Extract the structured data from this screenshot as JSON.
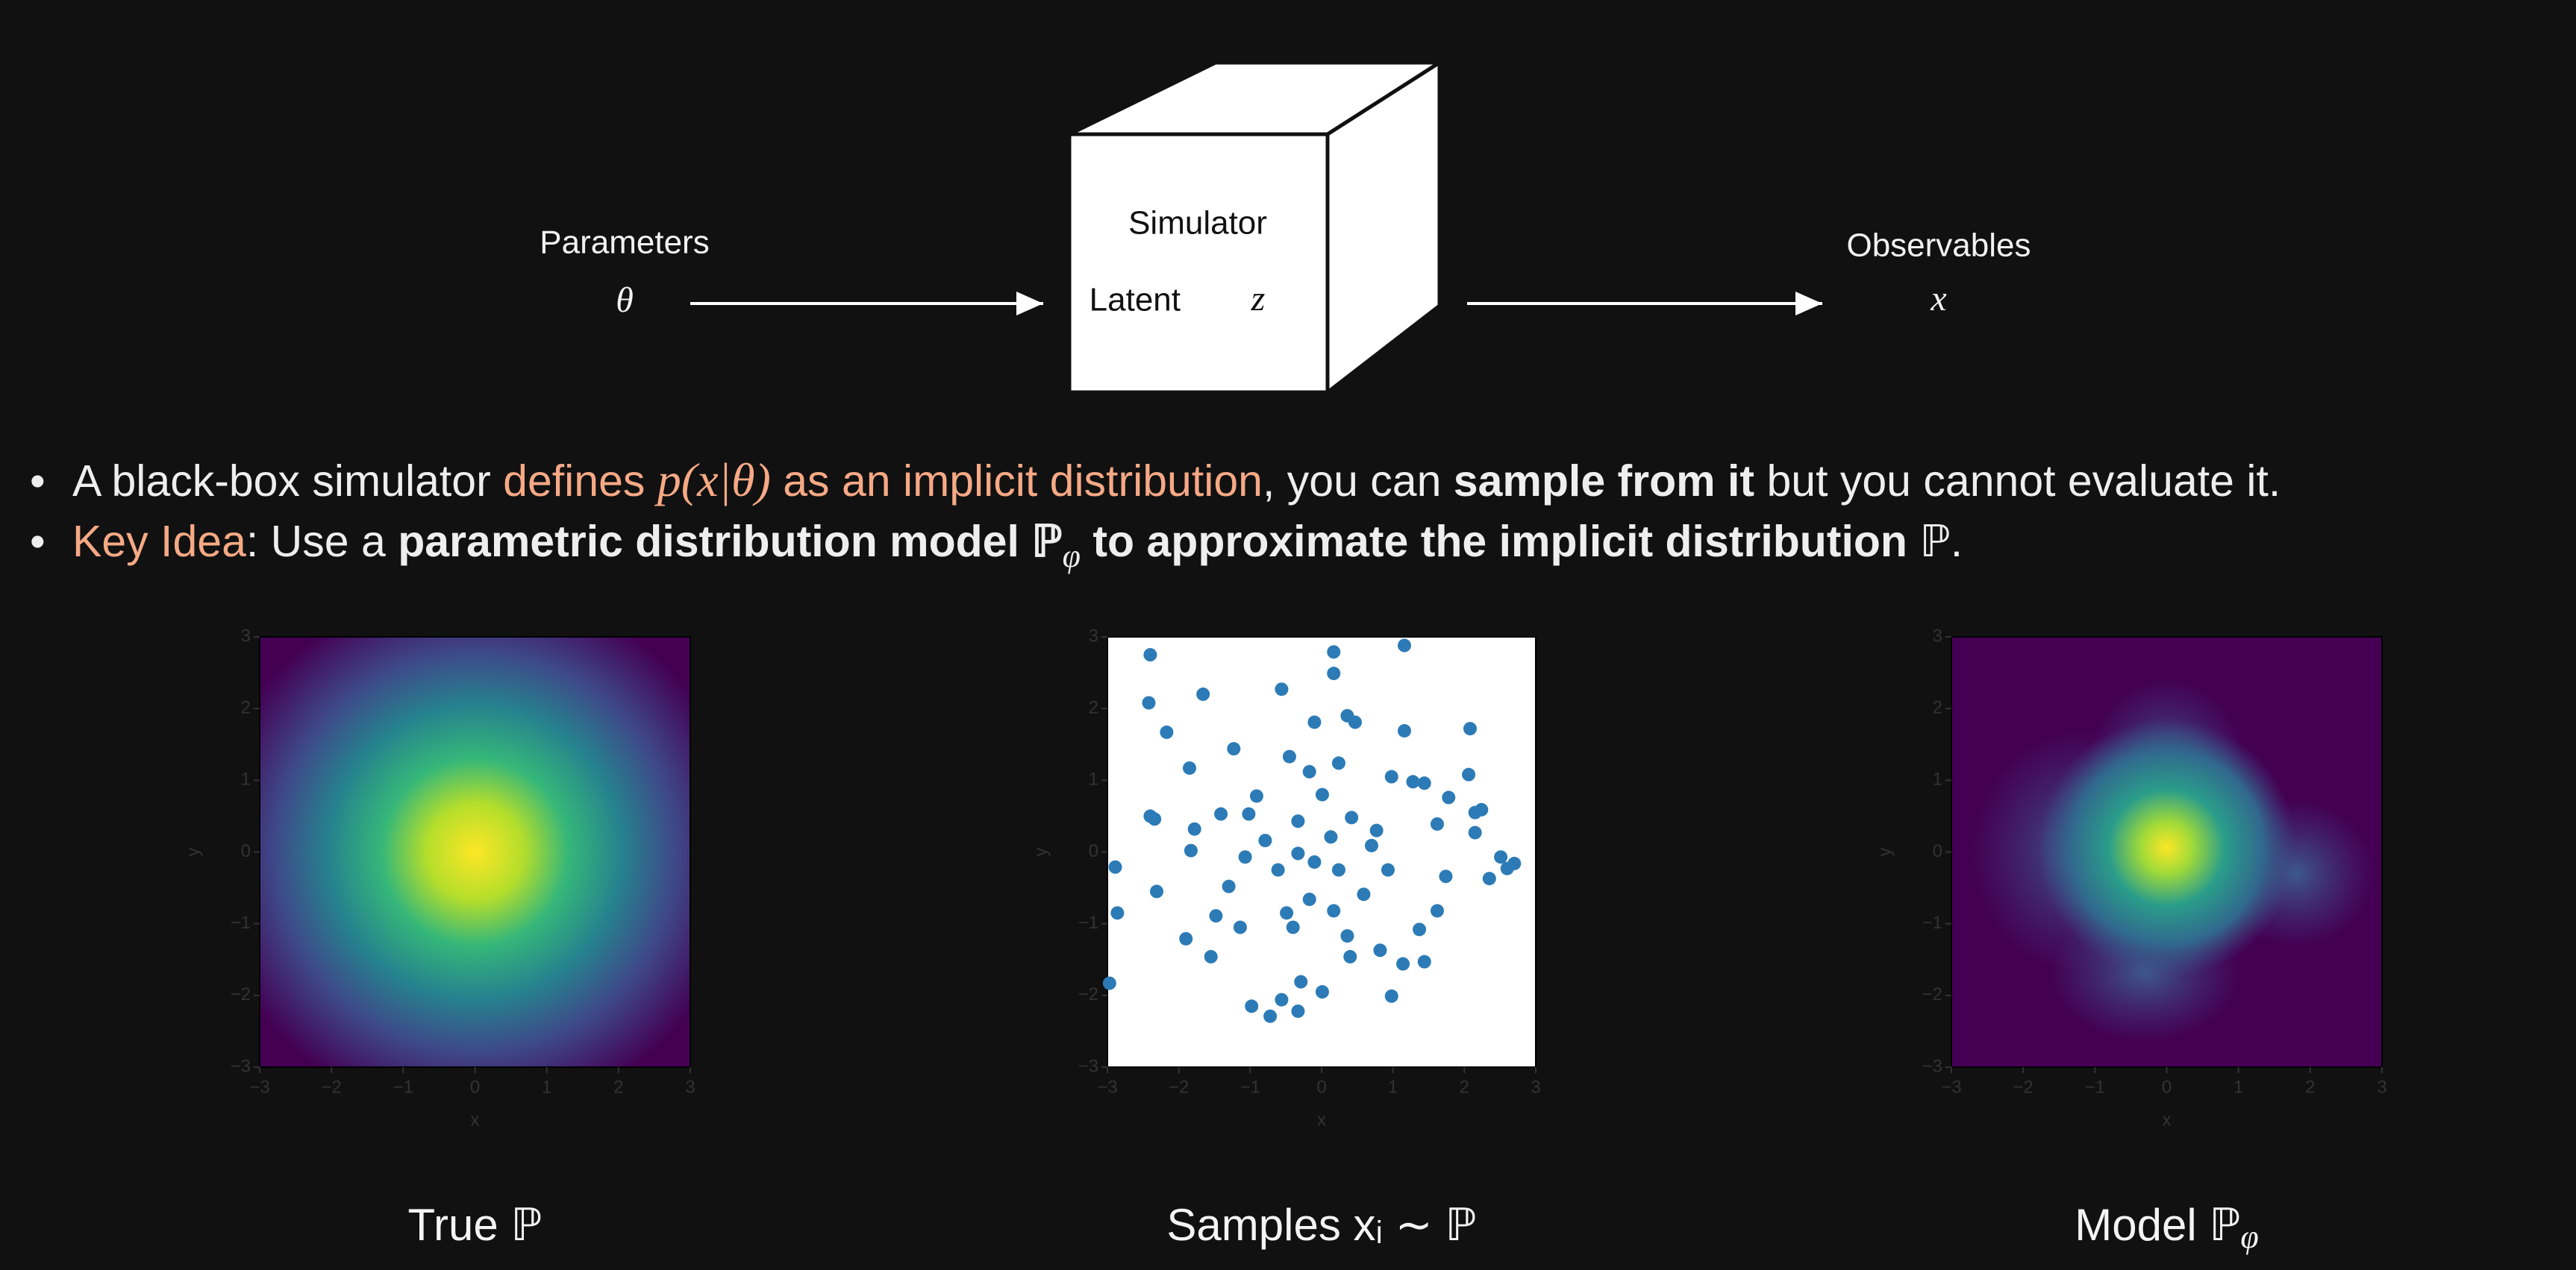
{
  "diagram": {
    "input_label": "Parameters",
    "input_symbol": "θ",
    "box_line1": "Simulator",
    "box_line2": "Latent",
    "latent_symbol": "z",
    "output_label": "Observables",
    "output_symbol": "x"
  },
  "bullets": [
    {
      "segments": [
        {
          "text": "A black-box simulator ",
          "style": "normal"
        },
        {
          "text": "defines ",
          "style": "accent"
        },
        {
          "text": "p(x|θ)",
          "style": "accent-math"
        },
        {
          "text": " as an implicit distribution",
          "style": "accent"
        },
        {
          "text": ", you can ",
          "style": "normal"
        },
        {
          "text": "sample from it",
          "style": "bold"
        },
        {
          "text": " but you cannot evaluate it.",
          "style": "normal"
        }
      ]
    },
    {
      "segments": [
        {
          "text": "Key Idea",
          "style": "accent"
        },
        {
          "text": ": Use a ",
          "style": "normal"
        },
        {
          "text": "parametric distribution model ",
          "style": "bold"
        },
        {
          "text": "ℙ",
          "style": "bold"
        },
        {
          "text": "φ",
          "style": "sub"
        },
        {
          "text": " to approximate the implicit distribution ",
          "style": "bold"
        },
        {
          "text": "ℙ.",
          "style": "normal"
        }
      ]
    }
  ],
  "chart_data": [
    {
      "type": "heatmap",
      "caption": "True ℙ",
      "xlabel": "x",
      "ylabel": "y",
      "xlim": [
        -3,
        3
      ],
      "ylim": [
        -3,
        3
      ],
      "xticks": [
        {
          "value": -3,
          "label": "−3"
        },
        {
          "value": -2,
          "label": "−2"
        },
        {
          "value": -1,
          "label": "−1"
        },
        0,
        1,
        2,
        3
      ],
      "yticks": [
        {
          "value": -3,
          "label": "−3"
        },
        {
          "value": -2,
          "label": "−2"
        },
        {
          "value": -1,
          "label": "−1"
        },
        0,
        1,
        2,
        3
      ]
    },
    {
      "type": "scatter",
      "caption": "Samples xᵢ ∼ ℙ",
      "xlabel": "x",
      "ylabel": "y",
      "xlim": [
        -3,
        3
      ],
      "ylim": [
        -3,
        3
      ],
      "color": "#2c7bb6",
      "xticks": [
        {
          "value": -3,
          "label": "−3"
        },
        {
          "value": -2,
          "label": "−2"
        },
        {
          "value": -1,
          "label": "−1"
        },
        0,
        1,
        2,
        3
      ],
      "yticks": [
        {
          "value": -3,
          "label": "−3"
        },
        {
          "value": -2,
          "label": "−2"
        },
        {
          "value": -1,
          "label": "−1"
        },
        0,
        1,
        2,
        3
      ],
      "x": [
        -2.4,
        -2.42,
        -2.17,
        -1.66,
        -0.56,
        0.17,
        0.17,
        1.16,
        -1.85,
        -1.23,
        -2.89,
        -2.86,
        -2.97,
        -2.31,
        -2.4,
        -2.34,
        -1.9,
        -1.55,
        -0.98,
        -0.72,
        -0.33,
        -0.56,
        0.01,
        -0.29,
        0.98,
        1.14,
        1.44,
        0.82,
        0.4,
        2.08,
        2.06,
        1.78,
        2.15,
        2.24,
        2.15,
        2.35,
        2.51,
        2.6,
        2.7,
        1.16,
        0.98,
        1.28,
        1.44,
        1.62,
        1.74,
        1.62,
        1.37,
        0.36,
        0.47,
        -0.1,
        -0.45,
        -0.91,
        -1.02,
        -0.79,
        -0.33,
        -0.1,
        0.13,
        0.24,
        0.42,
        -0.33,
        -0.61,
        -0.17,
        0.17,
        0.59,
        0.93,
        0.7,
        -1.3,
        -1.48,
        -1.14,
        -1.83,
        -1.78,
        -1.41,
        -0.49,
        -0.4,
        0.36,
        0.01,
        -0.17,
        0.24,
        0.77,
        -1.07
      ],
      "y": [
        2.75,
        2.08,
        1.67,
        2.2,
        2.27,
        2.79,
        2.49,
        2.88,
        1.17,
        1.44,
        -0.21,
        -0.85,
        -1.83,
        -0.55,
        0.5,
        0.46,
        -1.21,
        -1.46,
        -2.15,
        -2.29,
        -2.22,
        -2.06,
        -1.95,
        -1.81,
        -2.01,
        -1.56,
        -1.53,
        -1.37,
        -1.46,
        1.72,
        1.08,
        0.76,
        0.55,
        0.59,
        0.27,
        -0.37,
        -0.07,
        -0.23,
        -0.16,
        1.69,
        1.05,
        0.98,
        0.96,
        0.39,
        -0.34,
        -0.82,
        -1.08,
        1.9,
        1.81,
        1.81,
        1.33,
        0.78,
        0.53,
        0.16,
        -0.02,
        -0.14,
        0.21,
        -0.25,
        0.48,
        0.43,
        -0.25,
        -0.66,
        -0.82,
        -0.59,
        -0.25,
        0.09,
        -0.48,
        -0.89,
        -1.05,
        0.02,
        0.32,
        0.53,
        -0.85,
        -1.05,
        -1.17,
        0.8,
        1.12,
        1.24,
        0.3,
        -0.07
      ]
    },
    {
      "type": "heatmap",
      "caption": "Model ℙ",
      "caption_sub": "φ",
      "xlabel": "x",
      "ylabel": "y",
      "xlim": [
        -3,
        3
      ],
      "ylim": [
        -3,
        3
      ],
      "xticks": [
        {
          "value": -3,
          "label": "−3"
        },
        {
          "value": -2,
          "label": "−2"
        },
        {
          "value": -1,
          "label": "−1"
        },
        0,
        1,
        2,
        3
      ],
      "yticks": [
        {
          "value": -3,
          "label": "−3"
        },
        {
          "value": -2,
          "label": "−2"
        },
        {
          "value": -1,
          "label": "−1"
        },
        0,
        1,
        2,
        3
      ]
    }
  ]
}
